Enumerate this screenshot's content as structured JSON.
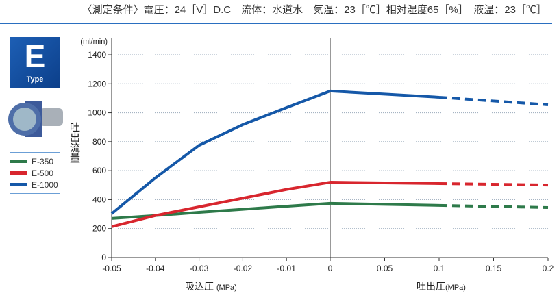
{
  "conditions": "〈測定条件〉電圧：24［V］D.C　流体：水道水　気温：23［℃］相対湿度65［%］　液温：23［℃］",
  "badge": {
    "letter": "E",
    "type": "Type"
  },
  "chart_data": {
    "type": "line",
    "ylabel": "吐出流量",
    "yunit": "(ml/min)",
    "xlabel_left": "吸込圧",
    "xlabel_right": "吐出圧",
    "xunit": "(MPa)",
    "ylim": [
      0,
      1400
    ],
    "yticks": [
      0,
      200,
      400,
      600,
      800,
      1000,
      1200,
      1400
    ],
    "xticks_left": [
      "-0.05",
      "-0.04",
      "-0.03",
      "-0.02",
      "-0.01",
      "0"
    ],
    "xticks_right": [
      "0.05",
      "0.1",
      "0.15",
      "0.2"
    ],
    "grid": true,
    "legend": "left",
    "x_left": [
      -0.05,
      -0.04,
      -0.03,
      -0.02,
      -0.01,
      0
    ],
    "x_right": [
      0,
      0.1,
      0.2
    ],
    "dashed_from": 0.1,
    "series": [
      {
        "name": "E-350",
        "color": "#2e7a4a",
        "left": [
          270,
          290,
          312,
          333,
          354,
          374
        ],
        "right": [
          374,
          360,
          345
        ]
      },
      {
        "name": "E-500",
        "color": "#d8262e",
        "left": [
          213,
          290,
          350,
          410,
          470,
          520
        ],
        "right": [
          520,
          511,
          501
        ]
      },
      {
        "name": "E-1000",
        "color": "#1558a8",
        "left": [
          303,
          550,
          775,
          918,
          1035,
          1150
        ],
        "right": [
          1150,
          1107,
          1055
        ]
      }
    ]
  }
}
